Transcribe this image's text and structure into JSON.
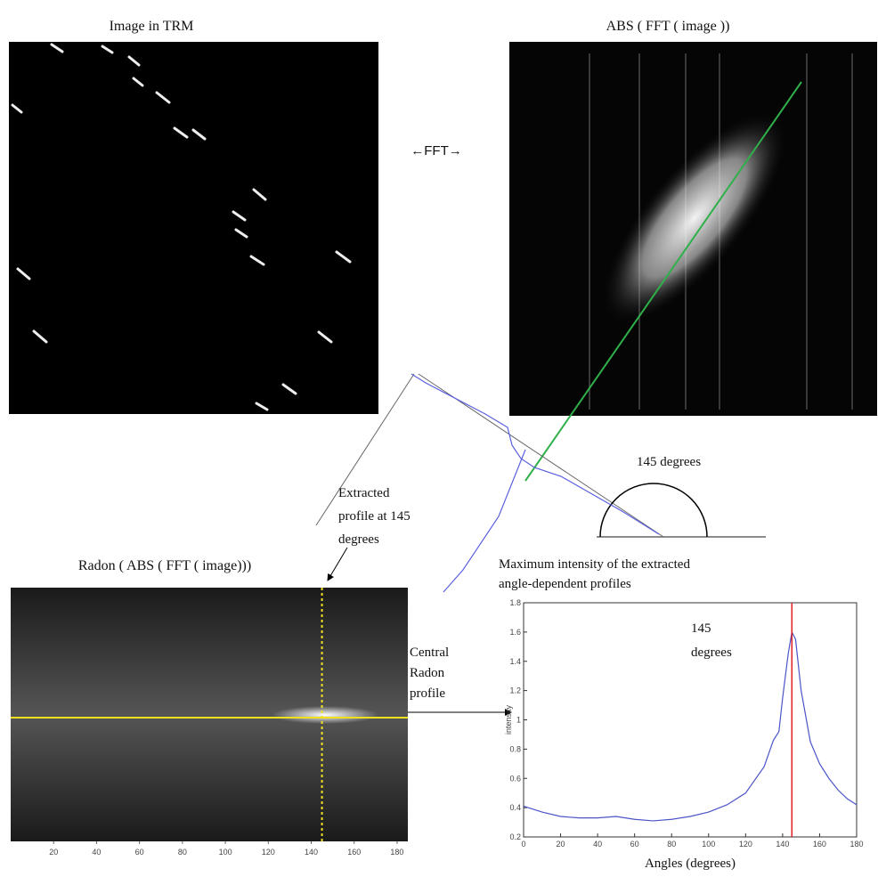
{
  "panels": {
    "trm_title": "Image in TRM",
    "fft_title": "ABS ( FFT ( image ))",
    "fft_arrow": "←FFT→",
    "angle_label": "145 degrees",
    "extracted_label": [
      "Extracted",
      "profile at 145",
      "degrees"
    ],
    "radon_title": "Radon ( ABS ( FFT ( image)))",
    "central_label": [
      "Central",
      "Radon",
      "profile"
    ],
    "max_label": [
      "Maximum intensity of the extracted",
      "angle-dependent profiles"
    ]
  },
  "radon": {
    "xlim": [
      0,
      185
    ],
    "xticks": [
      20,
      40,
      60,
      80,
      100,
      120,
      140,
      160,
      180
    ],
    "profile_angle": 145
  },
  "chart_data": {
    "type": "line",
    "x_label": "Angles (degrees)",
    "y_label": "intensity",
    "annotation": [
      "145",
      "degrees"
    ],
    "x": [
      0,
      10,
      20,
      30,
      40,
      50,
      60,
      70,
      80,
      90,
      100,
      110,
      120,
      130,
      135,
      138,
      140,
      143,
      145,
      147,
      150,
      155,
      160,
      165,
      170,
      175,
      180
    ],
    "values": [
      0.41,
      0.37,
      0.34,
      0.33,
      0.33,
      0.34,
      0.32,
      0.31,
      0.32,
      0.34,
      0.37,
      0.42,
      0.5,
      0.68,
      0.86,
      0.92,
      1.15,
      1.45,
      1.6,
      1.55,
      1.2,
      0.85,
      0.7,
      0.6,
      0.52,
      0.46,
      0.42
    ],
    "color": "#4b55c8",
    "marker_x": 145,
    "marker_color": "#e02020",
    "xlim": [
      0,
      180
    ],
    "ylim": [
      0.2,
      1.8
    ],
    "xticks": [
      0,
      20,
      40,
      60,
      80,
      100,
      120,
      140,
      160,
      180
    ],
    "yticks": [
      0.2,
      0.4,
      0.6,
      0.8,
      1,
      1.2,
      1.4,
      1.6,
      1.8
    ]
  }
}
